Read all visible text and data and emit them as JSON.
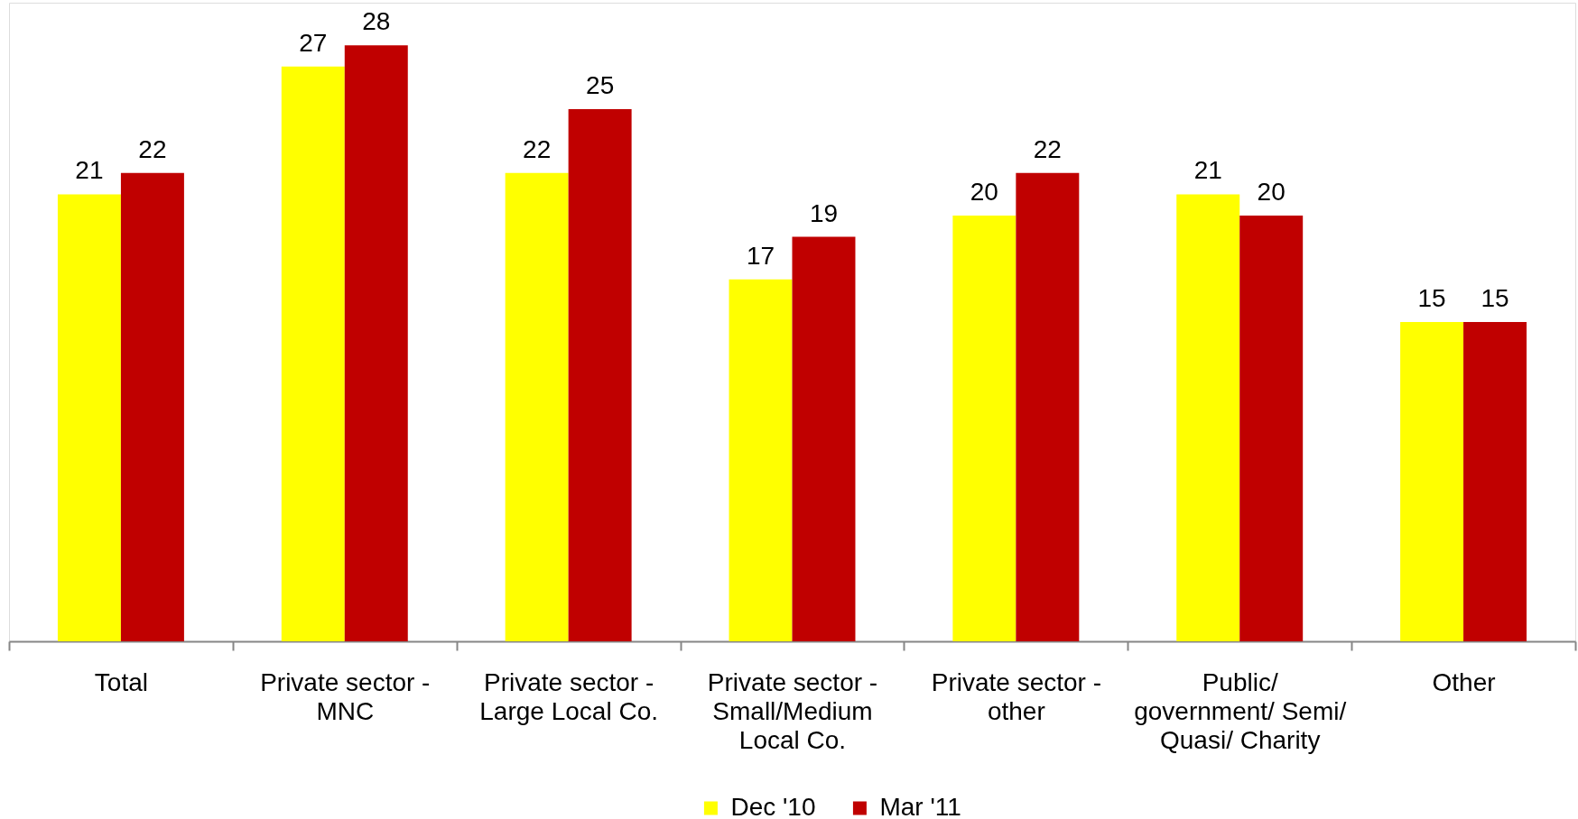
{
  "chart_data": {
    "type": "bar",
    "categories": [
      "Total",
      "Private sector - MNC",
      "Private sector - Large Local Co.",
      "Private sector - Small/Medium Local Co.",
      "Private sector - other",
      "Public/ government/ Semi/ Quasi/ Charity",
      "Other"
    ],
    "series": [
      {
        "name": "Dec '10",
        "color": "#ffff00",
        "values": [
          21,
          27,
          22,
          17,
          20,
          21,
          15
        ]
      },
      {
        "name": "Mar '11",
        "color": "#c00000",
        "values": [
          22,
          28,
          25,
          19,
          22,
          20,
          15
        ]
      }
    ],
    "data_labels": true,
    "legend": "bottom"
  }
}
